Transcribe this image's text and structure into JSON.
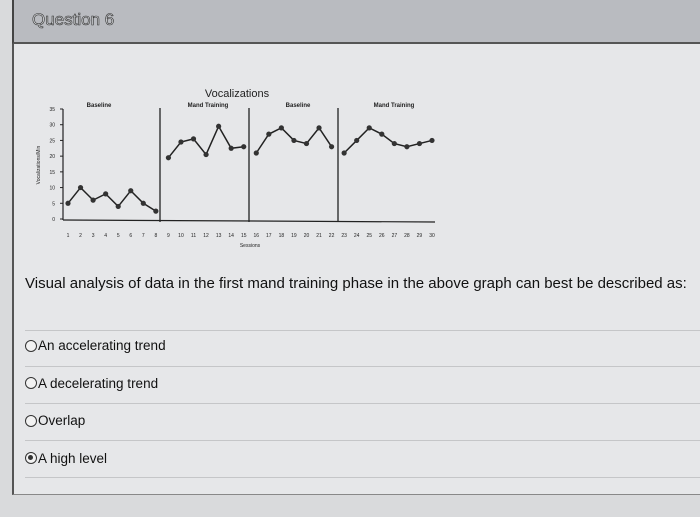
{
  "question": {
    "title": "Question 6",
    "text": "Visual analysis of data in the first mand training phase in the above graph can best be described as:"
  },
  "options": [
    {
      "label": "An accelerating trend",
      "selected": false
    },
    {
      "label": "A decelerating trend",
      "selected": false
    },
    {
      "label": "Overlap",
      "selected": false
    },
    {
      "label": "A high level",
      "selected": true
    }
  ],
  "chart_data": {
    "type": "line",
    "title": "Vocalizations",
    "xlabel": "Sessions",
    "ylabel": "Vocalizations/Min",
    "ylim": [
      0,
      35
    ],
    "yticks": [
      0,
      5,
      10,
      15,
      20,
      25,
      30,
      35
    ],
    "xticks": [
      1,
      2,
      3,
      4,
      5,
      6,
      7,
      8,
      9,
      10,
      11,
      12,
      13,
      14,
      15,
      16,
      17,
      18,
      19,
      20,
      21,
      22,
      23,
      24,
      25,
      26,
      27,
      28,
      29,
      30
    ],
    "phases": [
      {
        "label": "Baseline",
        "x": [
          1,
          2,
          3,
          4,
          5,
          6,
          7,
          8
        ],
        "y": [
          5,
          10,
          6,
          8,
          4,
          9,
          5,
          2.5
        ]
      },
      {
        "label": "Mand Training",
        "x": [
          9,
          10,
          11,
          12,
          13,
          14,
          15
        ],
        "y": [
          19.5,
          24.5,
          25.5,
          20.5,
          29.5,
          22.5,
          23
        ]
      },
      {
        "label": "Baseline",
        "x": [
          16,
          17,
          18,
          19,
          20,
          21,
          22
        ],
        "y": [
          21,
          27,
          29,
          25,
          24,
          29,
          23
        ]
      },
      {
        "label": "Mand Training",
        "x": [
          23,
          24,
          25,
          26,
          27,
          28,
          29,
          30
        ],
        "y": [
          21,
          25,
          29,
          27,
          24,
          23,
          24,
          25
        ]
      }
    ],
    "grid": false
  }
}
